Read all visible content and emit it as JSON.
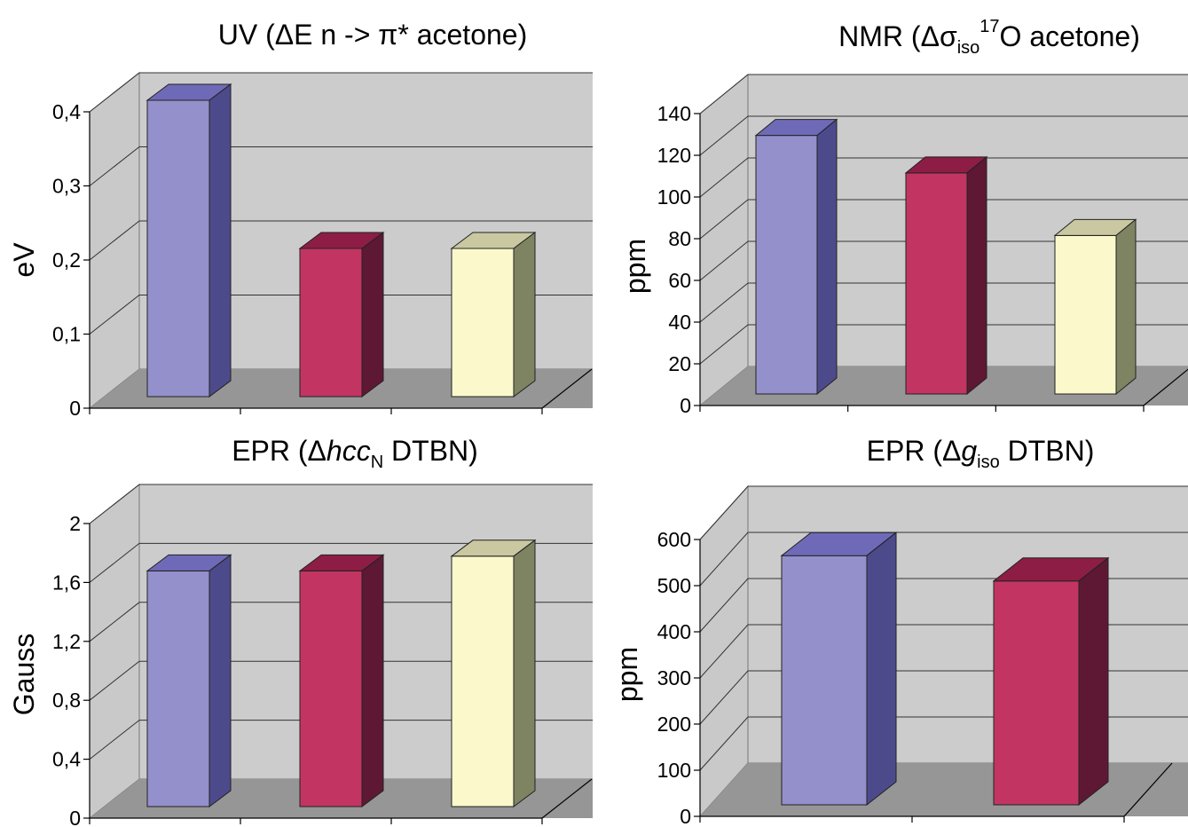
{
  "chart_data": [
    {
      "type": "bar",
      "title_parts": [
        {
          "t": "UV (ΔE n -> π* acetone)"
        }
      ],
      "xlabel": "",
      "ylabel": "eV",
      "ylim": [
        0,
        0.4
      ],
      "yticks": [
        0,
        0.1,
        0.2,
        0.3,
        0.4
      ],
      "ytick_labels": [
        "0",
        "0,1",
        "0,2",
        "0,3",
        "0,4"
      ],
      "values": [
        0.4,
        0.2,
        0.2
      ],
      "grid": true
    },
    {
      "type": "bar",
      "title_parts": [
        {
          "t": "NMR (Δσ"
        },
        {
          "t": "iso",
          "sub": true
        },
        {
          "t": "17",
          "sup": true
        },
        {
          "t": "O acetone)"
        }
      ],
      "xlabel": "",
      "ylabel": "ppm",
      "ylim": [
        0,
        140
      ],
      "yticks": [
        0,
        20,
        40,
        60,
        80,
        100,
        120,
        140
      ],
      "ytick_labels": [
        "0",
        "20",
        "40",
        "60",
        "80",
        "100",
        "120",
        "140"
      ],
      "values": [
        124,
        106,
        76
      ],
      "grid": true
    },
    {
      "type": "bar",
      "title_parts": [
        {
          "t": "EPR (Δ"
        },
        {
          "t": "hcc",
          "italic": true
        },
        {
          "t": "N",
          "sub": true
        },
        {
          "t": " DTBN)"
        }
      ],
      "xlabel": "",
      "ylabel": "Gauss",
      "ylim": [
        0,
        2
      ],
      "yticks": [
        0,
        0.4,
        0.8,
        1.2,
        1.6,
        2
      ],
      "ytick_labels": [
        "0",
        "0,4",
        "0,8",
        "1,2",
        "1,6",
        "2"
      ],
      "values": [
        1.6,
        1.6,
        1.7
      ],
      "grid": true
    },
    {
      "type": "bar",
      "title_parts": [
        {
          "t": "EPR (Δ"
        },
        {
          "t": "g",
          "italic": true
        },
        {
          "t": "iso",
          "sub": true
        },
        {
          "t": " DTBN)"
        }
      ],
      "xlabel": "",
      "ylabel": "ppm",
      "ylim": [
        0,
        600
      ],
      "yticks": [
        0,
        100,
        200,
        300,
        400,
        500,
        600
      ],
      "ytick_labels": [
        "0",
        "100",
        "200",
        "300",
        "400",
        "500",
        "600"
      ],
      "values": [
        540,
        485
      ],
      "grid": true
    }
  ],
  "colors": {
    "wall": "#cccccc",
    "side_wall": "#c9c9c9",
    "floor": "#969696",
    "grid": "#333333",
    "series": [
      {
        "front": "#9490cc",
        "top": "#6f6ab8",
        "side": "#4d4a8c"
      },
      {
        "front": "#c23563",
        "top": "#8e1d45",
        "side": "#5e1833"
      },
      {
        "front": "#fbf9cb",
        "top": "#c9c8a0",
        "side": "#7e8462"
      }
    ]
  }
}
